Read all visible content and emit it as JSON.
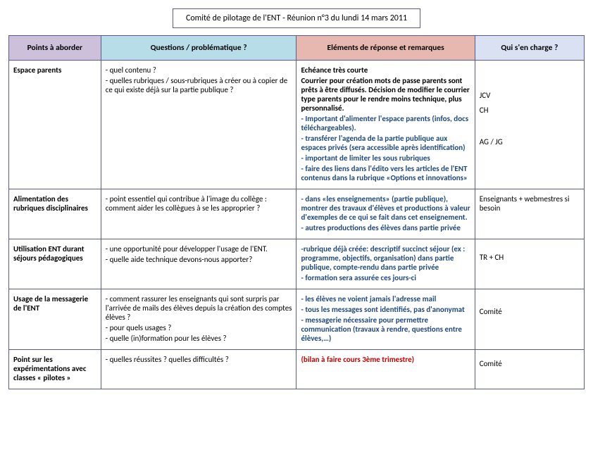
{
  "header": {
    "title": "Comité de pilotage de l'ENT  - Réunion n°3 du lundi 14 mars 2011"
  },
  "columns": {
    "points": "Points à aborder",
    "questions": "Questions / problématique ?",
    "reponses": "Eléments de réponse et remarques",
    "charge": "Qui s'en charge ?"
  },
  "rows": {
    "espace_parents": {
      "topic": "Espace parents",
      "q1": "- quel contenu ?",
      "q2": "- quelles rubriques / sous-rubriques à créer ou à copier de ce qui existe déjà sur la partie publique ?",
      "r1": "Echéance très courte",
      "r2": "Courrier pour création mots de passe parents sont prêts à être diffusés. Décision de modifier le courrier type parents pour le rendre moins technique, plus personnalisé.",
      "r3": "- Important d'alimenter l'espace parents (infos, docs téléchargeables).",
      "r4": "- transférer l'agenda de la partie publique  aux espaces privés (sera accessible après identification)",
      "r5": "- important de limiter les sous rubriques",
      "r6": "- faire des liens dans l'édito vers les articles de l'ENT contenus dans la rubrique «Options et innovations»",
      "c1": "JCV",
      "c2": "CH",
      "c3": "AG / JG"
    },
    "alim": {
      "topic": "Alimentation des rubriques disciplinaires",
      "q1": "- point essentiel qui contribue à l'image du collège : comment aider les collègues à se les approprier ?",
      "r1": "- dans «les enseignements» (partie publique), montrer des travaux d'élèves et productions à valeur d'exemples de ce qui se fait dans cet enseignement.",
      "r2": "- autres productions des élèves dans partie privée",
      "c1": "Enseignants + webmestres si besoin"
    },
    "sejours": {
      "topic": "Utilisation ENT durant séjours pédagogiques",
      "q1": "- une opportunité pour développer l'usage de l'ENT.",
      "q2": "- quelle aide technique devons-nous apporter?",
      "r1": " -rubrique déjà créée: descriptif succinct  séjour (ex : programme, objectifs, organisation) dans partie publique, compte-rendu dans partie privée",
      "r2": "- formation sera assurée ces jours-ci",
      "c1": "TR + CH"
    },
    "messagerie": {
      "topic": "Usage de la messagerie de l'ENT",
      "q1": "- comment rassurer les enseignants qui sont surpris par l'arrivée de mails des élèves depuis la création des comptes élèves ?",
      "q2": "- pour quels usages ?",
      "q3": "- quelle (in)formation pour les élèves ?",
      "r1": "- les élèves ne voient jamais l'adresse mail",
      "r2": "- tous les messages sont identifiés, pas d'anonymat",
      "r3": "- messagerie nécessaire pour permettre communication (travaux à rendre, questions entre élèves,…)",
      "c1": "Comité"
    },
    "pilotes": {
      "topic": "Point sur les expérimentations avec classes « pilotes »",
      "q1": "- quelles réussites ? quelles difficultés ?",
      "r1": "(bilan à faire cours 3ème trimestre)",
      "c1": "Comité"
    }
  }
}
